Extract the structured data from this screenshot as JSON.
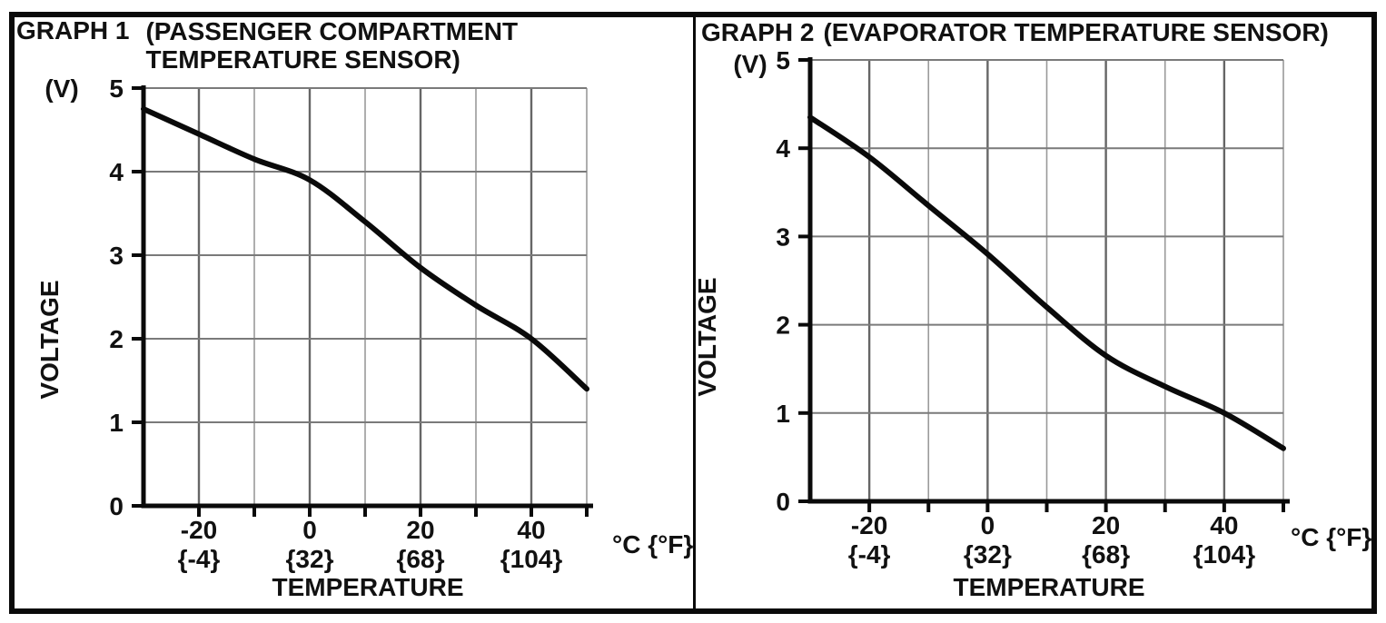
{
  "colors": {
    "background": "#ffffff",
    "border": "#0a0a0a",
    "axis": "#0a0a0a",
    "curve": "#0a0a0a",
    "grid_major": "#666666",
    "grid_minor": "#9a9a9a",
    "grid_horizontal": "#7a7a7a",
    "text": "#111111"
  },
  "chart_data": [
    {
      "id": "graph1",
      "type": "line",
      "graph_label": "GRAPH 1",
      "title": "(PASSENGER COMPARTMENT TEMPERATURE SENSOR)",
      "title_lines": [
        "(PASSENGER COMPARTMENT",
        "TEMPERATURE SENSOR)"
      ],
      "y_unit_label": "(V)",
      "ylabel": "VOLTAGE",
      "xlabel": "TEMPERATURE",
      "x_unit_label": "°C {°F}",
      "x_range": [
        -30,
        50
      ],
      "y_range": [
        0,
        5
      ],
      "x_grid_step": 10,
      "y_grid_step": 1,
      "grid": true,
      "legend": "none",
      "x_ticks": [
        {
          "value": -20,
          "celsius": "-20",
          "fahrenheit": "{-4}"
        },
        {
          "value": 0,
          "celsius": "0",
          "fahrenheit": "{32}"
        },
        {
          "value": 20,
          "celsius": "20",
          "fahrenheit": "{68}"
        },
        {
          "value": 40,
          "celsius": "40",
          "fahrenheit": "{104}"
        }
      ],
      "y_ticks": [
        {
          "value": 5,
          "label": "5"
        },
        {
          "value": 4,
          "label": "4"
        },
        {
          "value": 3,
          "label": "3"
        },
        {
          "value": 2,
          "label": "2"
        },
        {
          "value": 1,
          "label": "1"
        },
        {
          "value": 0,
          "label": "0"
        }
      ],
      "series": [
        {
          "name": "passenger-compartment-sensor-voltage",
          "x": [
            -30,
            -20,
            -10,
            0,
            10,
            20,
            30,
            40,
            50
          ],
          "y": [
            4.75,
            4.45,
            4.15,
            3.9,
            3.4,
            2.85,
            2.4,
            2.0,
            1.4
          ]
        }
      ]
    },
    {
      "id": "graph2",
      "type": "line",
      "graph_label": "GRAPH 2",
      "title": "(EVAPORATOR TEMPERATURE SENSOR)",
      "title_lines": [
        "(EVAPORATOR TEMPERATURE SENSOR)"
      ],
      "y_unit_label": "(V)",
      "ylabel": "VOLTAGE",
      "xlabel": "TEMPERATURE",
      "x_unit_label": "°C {°F}",
      "x_range": [
        -30,
        50
      ],
      "y_range": [
        0,
        5
      ],
      "x_grid_step": 10,
      "y_grid_step": 1,
      "grid": true,
      "legend": "none",
      "x_ticks": [
        {
          "value": -20,
          "celsius": "-20",
          "fahrenheit": "{-4}"
        },
        {
          "value": 0,
          "celsius": "0",
          "fahrenheit": "{32}"
        },
        {
          "value": 20,
          "celsius": "20",
          "fahrenheit": "{68}"
        },
        {
          "value": 40,
          "celsius": "40",
          "fahrenheit": "{104}"
        }
      ],
      "y_ticks": [
        {
          "value": 5,
          "label": "5"
        },
        {
          "value": 4,
          "label": "4"
        },
        {
          "value": 3,
          "label": "3"
        },
        {
          "value": 2,
          "label": "2"
        },
        {
          "value": 1,
          "label": "1"
        },
        {
          "value": 0,
          "label": "0"
        }
      ],
      "series": [
        {
          "name": "evaporator-sensor-voltage",
          "x": [
            -30,
            -20,
            -10,
            0,
            10,
            20,
            30,
            40,
            50
          ],
          "y": [
            4.35,
            3.9,
            3.35,
            2.8,
            2.2,
            1.65,
            1.3,
            1.0,
            0.6
          ]
        }
      ]
    }
  ]
}
